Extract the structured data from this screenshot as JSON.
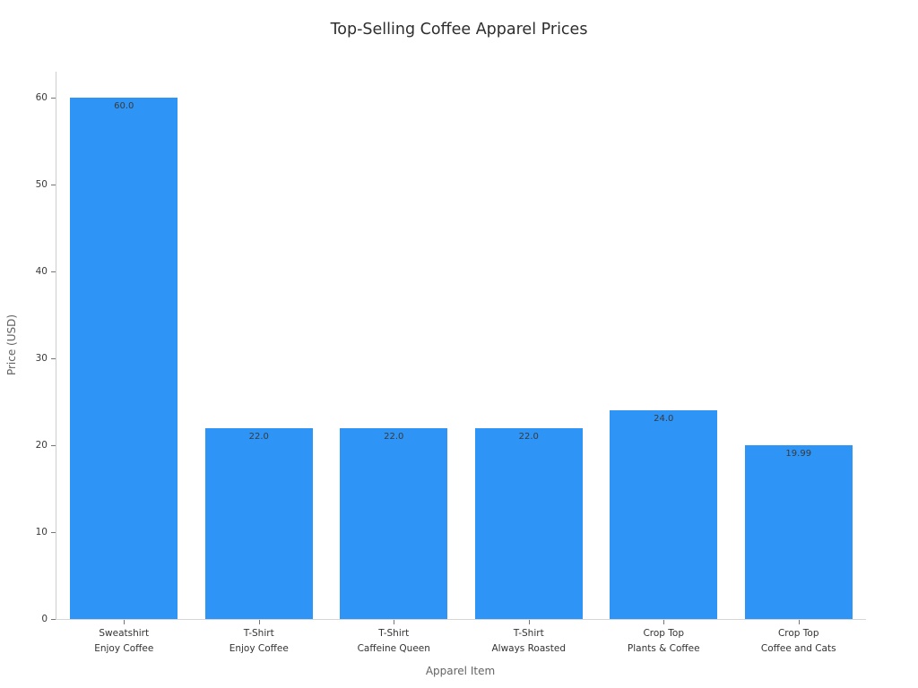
{
  "figure": {
    "title": "Top-Selling Coffee Apparel Prices"
  },
  "chart_data": {
    "type": "bar",
    "title": "Top-Selling Coffee Apparel Prices",
    "xlabel": "Apparel Item",
    "ylabel": "Price (USD)",
    "categories": [
      [
        "Sweatshirt",
        "Enjoy Coffee"
      ],
      [
        "T-Shirt",
        "Enjoy Coffee"
      ],
      [
        "T-Shirt",
        "Caffeine Queen"
      ],
      [
        "T-Shirt",
        "Always Roasted"
      ],
      [
        "Crop Top",
        "Plants & Coffee"
      ],
      [
        "Crop Top",
        "Coffee and Cats"
      ]
    ],
    "values": [
      60.0,
      22.0,
      22.0,
      22.0,
      24.0,
      19.99
    ],
    "value_labels": [
      "60.0",
      "22.0",
      "22.0",
      "22.0",
      "24.0",
      "19.99"
    ],
    "yticks": [
      0,
      10,
      20,
      30,
      40,
      50,
      60
    ],
    "ylim": [
      0,
      63
    ],
    "grid": false,
    "legend": null,
    "bar_color": "#2E94F5",
    "bar_width_fraction": 0.8
  },
  "colors": {
    "bar": "#2E94F5",
    "title_text": "#2e2e2e",
    "axis_label_text": "#646464",
    "tick_label_text": "#3a3a3a",
    "category_text": "#333333",
    "spine": "#cdcdcd",
    "background": "#ffffff"
  }
}
